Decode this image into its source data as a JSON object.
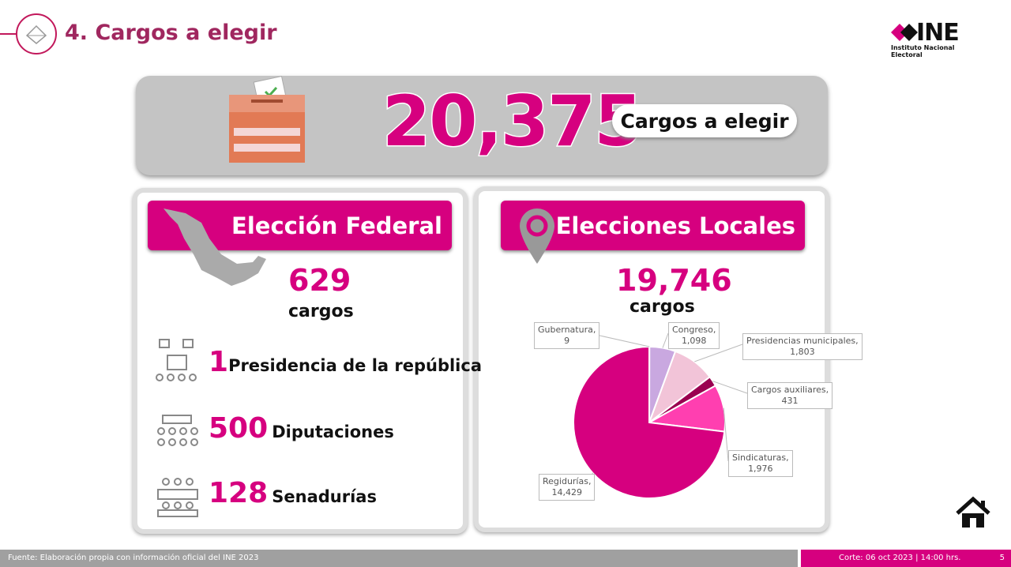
{
  "header": {
    "title": "4. Cargos a elegir",
    "logo_text": "INE",
    "logo_subtitle": "Instituto Nacional Electoral"
  },
  "summary": {
    "total": "20,375",
    "label": "Cargos a elegir"
  },
  "federal": {
    "title": "Elección Federal",
    "total": "629",
    "unit": "cargos",
    "items": [
      {
        "value": "1",
        "label": "Presidencia de la república",
        "icon": "presidency-icon"
      },
      {
        "value": "500",
        "label": "Diputaciones",
        "icon": "chamber-icon"
      },
      {
        "value": "128",
        "label": "Senadurías",
        "icon": "senate-icon"
      }
    ]
  },
  "local": {
    "title": "Elecciones Locales",
    "total": "19,746",
    "unit": "cargos"
  },
  "chart_data": {
    "type": "pie",
    "start": "12 o'clock",
    "direction": "clockwise",
    "slices": [
      {
        "name": "Gubernatura",
        "label": "Gubernatura,",
        "value": 9,
        "value_label": "9",
        "color": "#b07fc8"
      },
      {
        "name": "Congreso",
        "label": "Congreso,",
        "value": 1098,
        "value_label": "1,098",
        "color": "#c9a8e0"
      },
      {
        "name": "Presidencias municipales",
        "label": "Presidencias municipales,",
        "value": 1803,
        "value_label": "1,803",
        "color": "#f2c4d8"
      },
      {
        "name": "Cargos auxiliares",
        "label": "Cargos auxiliares,",
        "value": 431,
        "value_label": "431",
        "color": "#9a0050"
      },
      {
        "name": "Sindicaturas",
        "label": "Sindicaturas,",
        "value": 1976,
        "value_label": "1,976",
        "color": "#ff3fb0"
      },
      {
        "name": "Regidurías",
        "label": "Regidurías,",
        "value": 14429,
        "value_label": "14,429",
        "color": "#d6007f"
      }
    ]
  },
  "footer": {
    "source": "Fuente: Elaboración propia con información oficial del INE 2023",
    "cut": "Corte: 06 oct 2023 | 14:00 hrs.",
    "page": "5"
  },
  "colors": {
    "accent": "#d6007f",
    "title": "#a0275f"
  }
}
